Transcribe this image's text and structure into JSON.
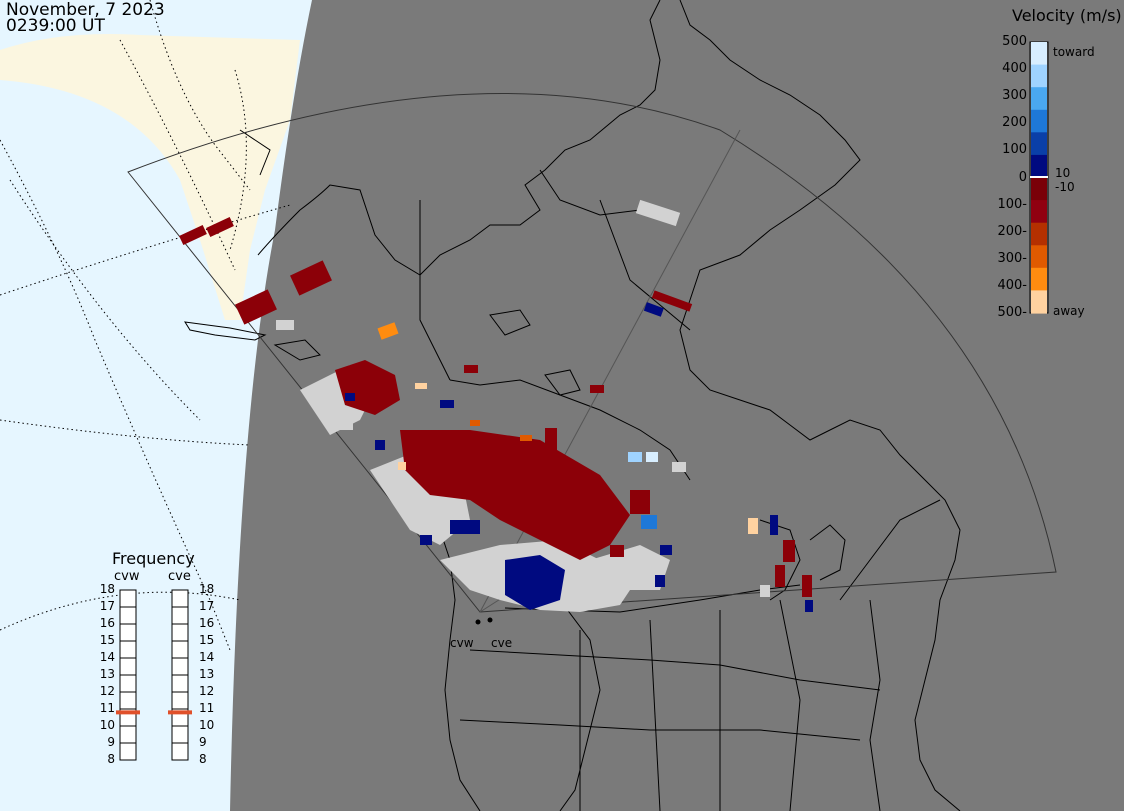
{
  "header": {
    "date": "November, 7 2023",
    "time": "0239:00 UT"
  },
  "velocity_legend": {
    "title": "Velocity (m/s)",
    "ticks": [
      "500",
      "400",
      "300",
      "200",
      "100",
      "0",
      "-100",
      "-200",
      "-300",
      "-400",
      "-500"
    ],
    "inner_labels": [
      "10",
      "-10"
    ],
    "toward_label": "toward",
    "away_label": "away",
    "colors": [
      "#d8eeff",
      "#9fd3ff",
      "#4aa8f0",
      "#1e78d8",
      "#0a3fa8",
      "#000a80",
      "#7a0008",
      "#900010",
      "#b43000",
      "#e05a00",
      "#ff8c10",
      "#ffd2a0"
    ]
  },
  "frequency_panel": {
    "title": "Frequency",
    "radars": [
      "cvw",
      "cve"
    ],
    "levels": [
      "18",
      "17",
      "16",
      "15",
      "14",
      "13",
      "12",
      "11",
      "10",
      "9",
      "8"
    ],
    "cvw_mhz": 10.8,
    "cve_mhz": 10.8,
    "marker_color": "#e0502a"
  },
  "radar_sites": [
    "cvw",
    "cve"
  ],
  "map_colors": {
    "night": "#7a7a7a",
    "day_ocean": "#e6f6ff",
    "day_land": "#fbf6e0",
    "gs_scatter": "#d2d2d2"
  }
}
